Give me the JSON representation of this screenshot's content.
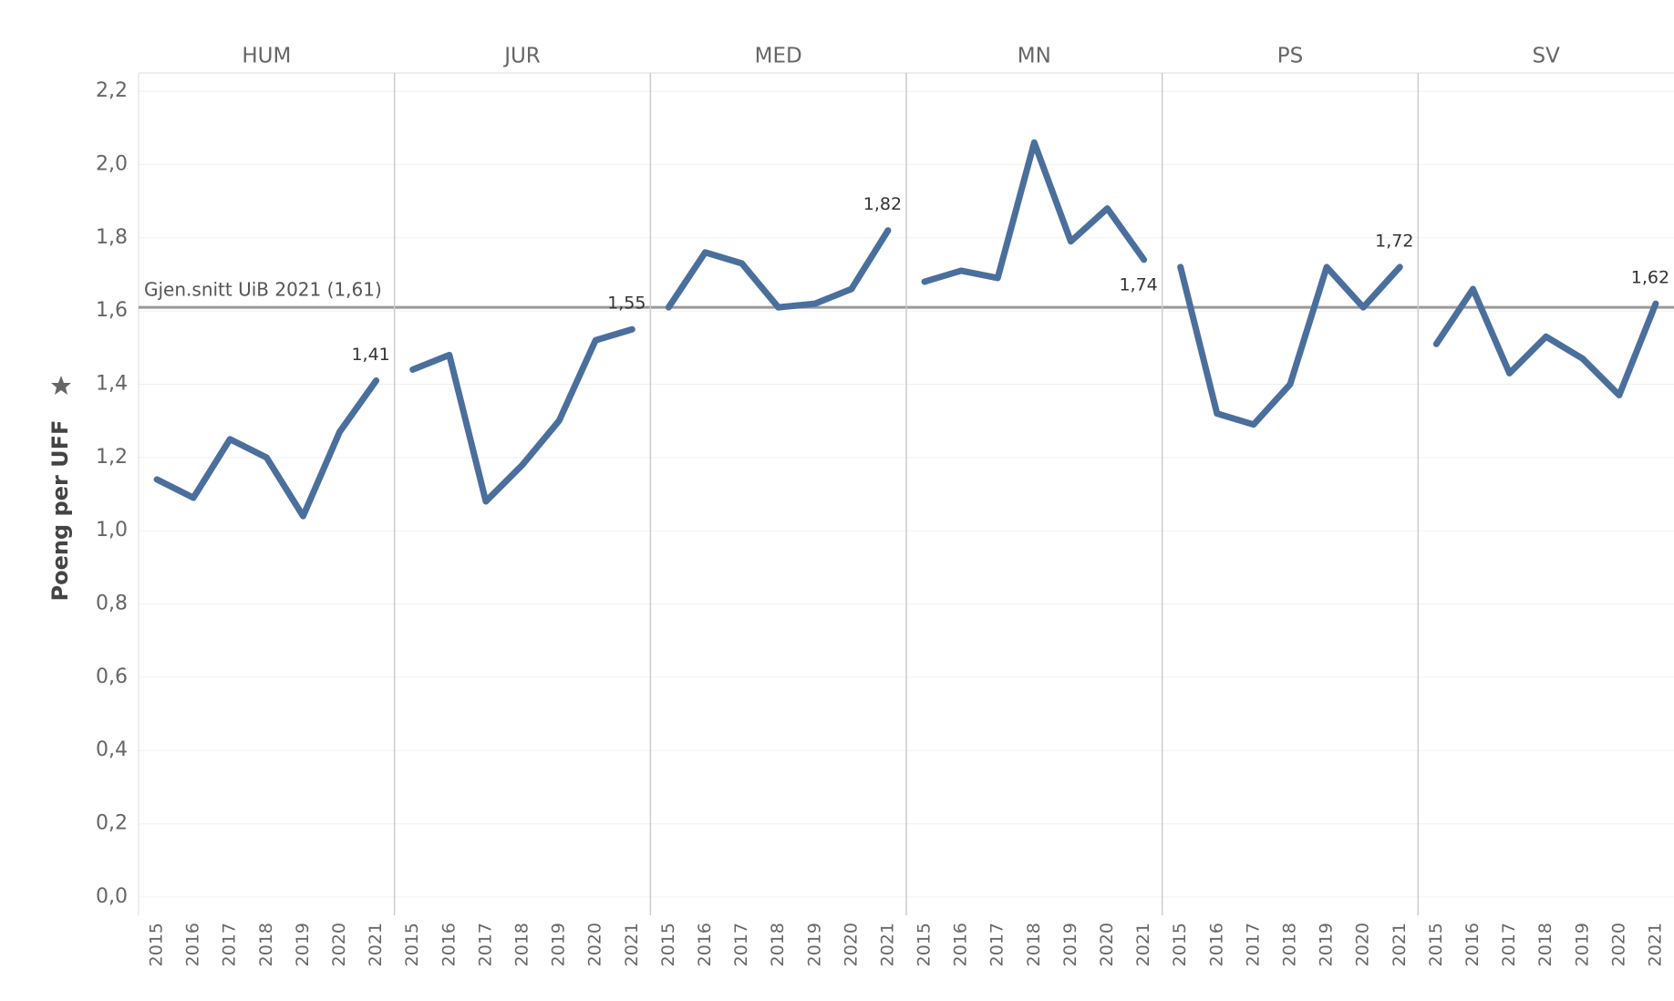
{
  "chart_data": {
    "type": "line",
    "y_label": "Poeng per UFF",
    "color": "#4a6f9c",
    "categories": [
      "2015",
      "2016",
      "2017",
      "2018",
      "2019",
      "2020",
      "2021"
    ],
    "facets": [
      {
        "name": "HUM",
        "values": [
          1.14,
          1.09,
          1.25,
          1.2,
          1.04,
          1.27,
          1.41
        ],
        "value_labels": [
          null,
          null,
          null,
          null,
          null,
          null,
          "1,41"
        ]
      },
      {
        "name": "JUR",
        "values": [
          1.44,
          1.48,
          1.08,
          1.18,
          1.3,
          1.52,
          1.55
        ],
        "value_labels": [
          null,
          null,
          null,
          null,
          null,
          null,
          "1,55"
        ]
      },
      {
        "name": "MED",
        "values": [
          1.61,
          1.76,
          1.73,
          1.61,
          1.62,
          1.66,
          1.82
        ],
        "value_labels": [
          null,
          null,
          null,
          null,
          null,
          null,
          "1,82"
        ]
      },
      {
        "name": "MN",
        "values": [
          1.68,
          1.71,
          1.69,
          2.06,
          1.79,
          1.88,
          1.74
        ],
        "value_labels": [
          null,
          null,
          null,
          null,
          null,
          null,
          "1,74"
        ]
      },
      {
        "name": "PS",
        "values": [
          1.72,
          1.32,
          1.29,
          1.4,
          1.72,
          1.61,
          1.72
        ],
        "value_labels": [
          null,
          null,
          null,
          null,
          null,
          null,
          "1,72"
        ]
      },
      {
        "name": "SV",
        "values": [
          1.51,
          1.66,
          1.43,
          1.53,
          1.47,
          1.37,
          1.62
        ],
        "value_labels": [
          null,
          null,
          null,
          null,
          null,
          null,
          "1,62"
        ]
      }
    ],
    "reference_line": {
      "value": 1.61,
      "label": "Gjen.snitt UiB 2021 (1,61)"
    },
    "ylim": [
      -0.05,
      2.25
    ],
    "yticks": [
      {
        "value": 0.0,
        "label": "0,0"
      },
      {
        "value": 0.2,
        "label": "0,2"
      },
      {
        "value": 0.4,
        "label": "0,4"
      },
      {
        "value": 0.6,
        "label": "0,6"
      },
      {
        "value": 0.8,
        "label": "0,8"
      },
      {
        "value": 1.0,
        "label": "1,0"
      },
      {
        "value": 1.2,
        "label": "1,2"
      },
      {
        "value": 1.4,
        "label": "1,4"
      },
      {
        "value": 1.6,
        "label": "1,6"
      },
      {
        "value": 1.8,
        "label": "1,8"
      },
      {
        "value": 2.0,
        "label": "2,0"
      },
      {
        "value": 2.2,
        "label": "2,2"
      }
    ],
    "grid": true
  }
}
